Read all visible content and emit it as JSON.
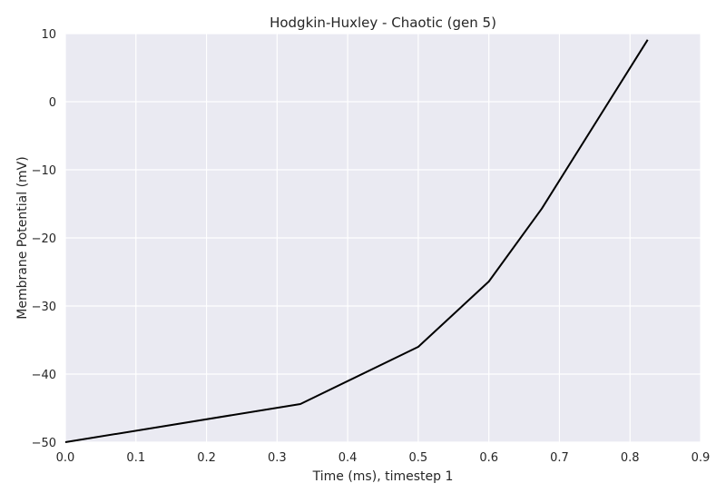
{
  "chart_data": {
    "type": "line",
    "title": "Hodgkin-Huxley - Chaotic (gen 5)",
    "xlabel": "Time (ms), timestep 1",
    "ylabel": "Membrane Potential (mV)",
    "xlim": [
      0.0,
      0.9
    ],
    "ylim": [
      -50,
      10
    ],
    "xticks": [
      0.0,
      0.1,
      0.2,
      0.3,
      0.4,
      0.5,
      0.6,
      0.7,
      0.8,
      0.9
    ],
    "xtick_labels": [
      "0.0",
      "0.1",
      "0.2",
      "0.3",
      "0.4",
      "0.5",
      "0.6",
      "0.7",
      "0.8",
      "0.9"
    ],
    "yticks": [
      -50,
      -40,
      -30,
      -20,
      -10,
      0,
      10
    ],
    "ytick_labels": [
      "−50",
      "−40",
      "−30",
      "−20",
      "−10",
      "0",
      "10"
    ],
    "grid": true,
    "series": [
      {
        "color": "#000000",
        "x": [
          0.0,
          0.333,
          0.5,
          0.6,
          0.675,
          0.825
        ],
        "y": [
          -50.0,
          -44.4,
          -36.0,
          -26.4,
          -15.7,
          9.1
        ]
      }
    ],
    "colors": {
      "plot_background": "#eaeaf2",
      "grid": "#ffffff",
      "line": "#000000"
    }
  }
}
